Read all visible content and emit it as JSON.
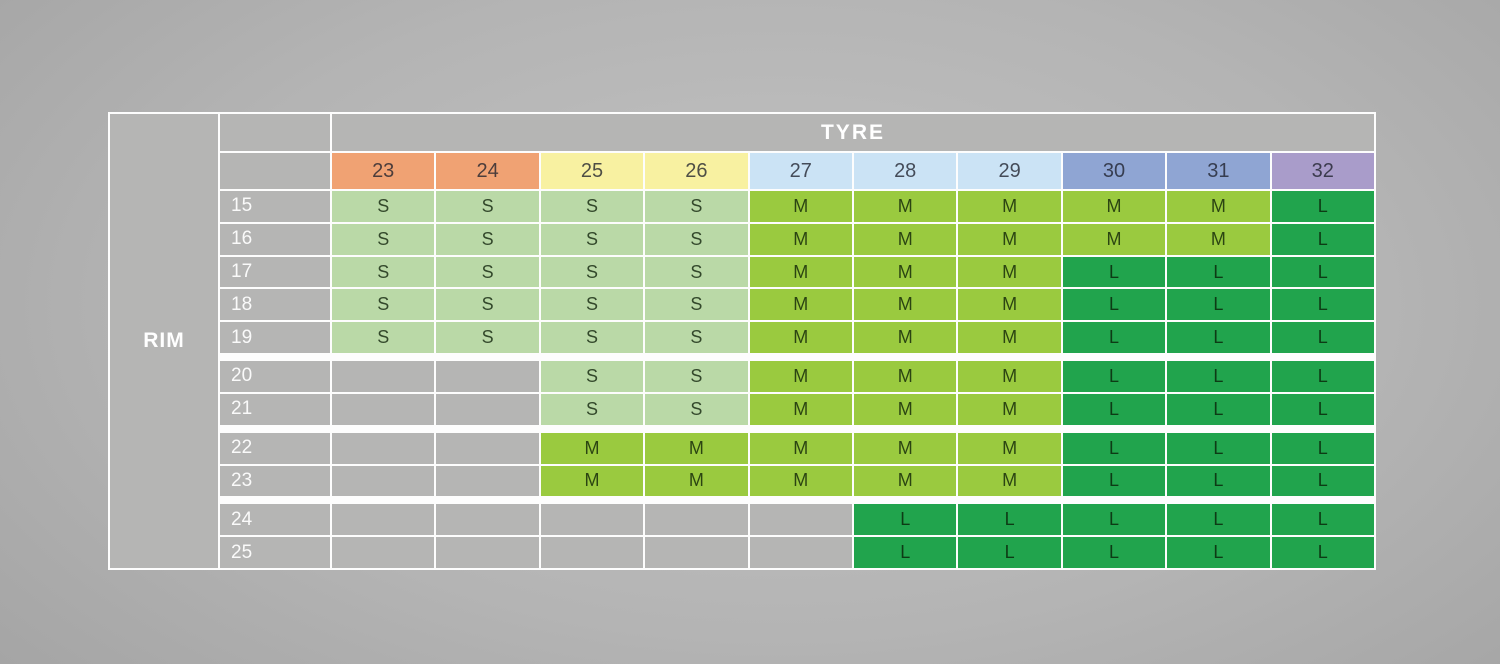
{
  "table": {
    "rim_label": "RIM",
    "tyre_label": "TYRE"
  },
  "colors": {
    "border_white": "#fdfdfd",
    "cell_gray": "#b5b5b4",
    "fit_S": "#bad9a7",
    "fit_M": "#9aca3f",
    "fit_L": "#21a44d",
    "header_orange": "#f0a273",
    "header_yellow": "#f8f1a1",
    "header_lightblue": "#cbe3f5",
    "header_periwinkle": "#8fa5d3",
    "header_purple": "#a99cca"
  },
  "chart_data": {
    "type": "table",
    "title": "TYRE",
    "row_axis_label": "RIM",
    "column_header": "TYRE",
    "tyre_sizes": [
      "23",
      "24",
      "25",
      "26",
      "27",
      "28",
      "29",
      "30",
      "31",
      "32"
    ],
    "tyre_header_colors": [
      "#f0a273",
      "#f0a273",
      "#f8f1a1",
      "#f8f1a1",
      "#cbe3f5",
      "#cbe3f5",
      "#cbe3f5",
      "#8fa5d3",
      "#8fa5d3",
      "#a99cca"
    ],
    "rim_sizes": [
      "15",
      "16",
      "17",
      "18",
      "19",
      "20",
      "21",
      "22",
      "23",
      "24",
      "25"
    ],
    "row_group_separators_after": [
      "19",
      "21",
      "23"
    ],
    "cell_colors_by_value": {
      "S": "#bad9a7",
      "M": "#9aca3f",
      "L": "#21a44d",
      "": "#b5b5b4"
    },
    "cells": [
      [
        "S",
        "S",
        "S",
        "S",
        "M",
        "M",
        "M",
        "M",
        "M",
        "L"
      ],
      [
        "S",
        "S",
        "S",
        "S",
        "M",
        "M",
        "M",
        "M",
        "M",
        "L"
      ],
      [
        "S",
        "S",
        "S",
        "S",
        "M",
        "M",
        "M",
        "L",
        "L",
        "L"
      ],
      [
        "S",
        "S",
        "S",
        "S",
        "M",
        "M",
        "M",
        "L",
        "L",
        "L"
      ],
      [
        "S",
        "S",
        "S",
        "S",
        "M",
        "M",
        "M",
        "L",
        "L",
        "L"
      ],
      [
        "",
        "",
        "S",
        "S",
        "M",
        "M",
        "M",
        "L",
        "L",
        "L"
      ],
      [
        "",
        "",
        "S",
        "S",
        "M",
        "M",
        "M",
        "L",
        "L",
        "L"
      ],
      [
        "",
        "",
        "M",
        "M",
        "M",
        "M",
        "M",
        "L",
        "L",
        "L"
      ],
      [
        "",
        "",
        "M",
        "M",
        "M",
        "M",
        "M",
        "L",
        "L",
        "L"
      ],
      [
        "",
        "",
        "",
        "",
        "",
        "L",
        "L",
        "L",
        "L",
        "L"
      ],
      [
        "",
        "",
        "",
        "",
        "",
        "L",
        "L",
        "L",
        "L",
        "L"
      ]
    ]
  }
}
